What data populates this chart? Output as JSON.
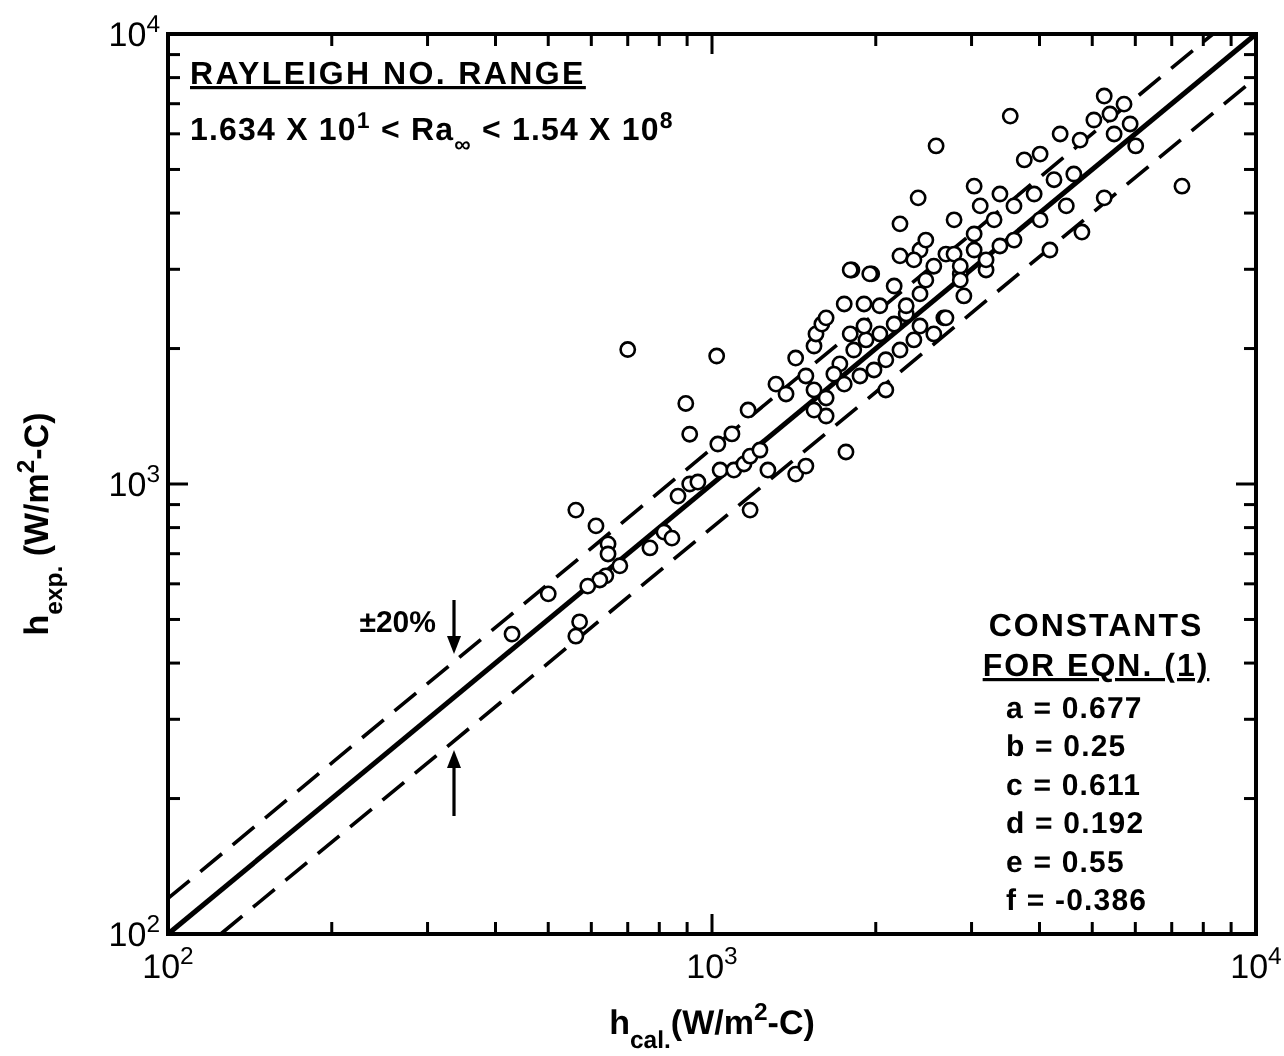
{
  "chart_data": {
    "type": "scatter",
    "xlabel": "h$_{cal.}$(W/m$^{2}$-C)",
    "ylabel": "h$_{exp.}$ (W/m$^{2}$-C)",
    "log": "xy",
    "grid": false,
    "xlim": [
      100,
      10000
    ],
    "ylim": [
      100,
      10000
    ],
    "xticks": [
      {
        "value": 100,
        "label": "10$^{2}$"
      },
      {
        "value": 200,
        "label": null
      },
      {
        "value": 300,
        "label": null
      },
      {
        "value": 400,
        "label": null
      },
      {
        "value": 500,
        "label": null
      },
      {
        "value": 600,
        "label": null
      },
      {
        "value": 700,
        "label": null
      },
      {
        "value": 800,
        "label": null
      },
      {
        "value": 900,
        "label": null
      },
      {
        "value": 1000,
        "label": "10$^{3}$"
      },
      {
        "value": 2000,
        "label": null
      },
      {
        "value": 3000,
        "label": null
      },
      {
        "value": 4000,
        "label": null
      },
      {
        "value": 5000,
        "label": null
      },
      {
        "value": 6000,
        "label": null
      },
      {
        "value": 7000,
        "label": null
      },
      {
        "value": 8000,
        "label": null
      },
      {
        "value": 9000,
        "label": null
      },
      {
        "value": 10000,
        "label": "10$^{4}$"
      }
    ],
    "yticks": [
      {
        "value": 100,
        "label": "10$^{2}$"
      },
      {
        "value": 200,
        "label": null
      },
      {
        "value": 300,
        "label": null
      },
      {
        "value": 400,
        "label": null
      },
      {
        "value": 500,
        "label": null
      },
      {
        "value": 600,
        "label": null
      },
      {
        "value": 700,
        "label": null
      },
      {
        "value": 800,
        "label": null
      },
      {
        "value": 900,
        "label": null
      },
      {
        "value": 1000,
        "label": "10$^{3}$"
      },
      {
        "value": 2000,
        "label": null
      },
      {
        "value": 3000,
        "label": null
      },
      {
        "value": 4000,
        "label": null
      },
      {
        "value": 5000,
        "label": null
      },
      {
        "value": 6000,
        "label": null
      },
      {
        "value": 7000,
        "label": null
      },
      {
        "value": 8000,
        "label": null
      },
      {
        "value": 9000,
        "label": null
      },
      {
        "value": 10000,
        "label": "10$^{4}$"
      }
    ],
    "annotations": [
      "RAYLEIGH NO. RANGE",
      "1.634 X 10$^{1}$ < Ra$_{∞}$ < 1.54 X 10$^{8}$",
      "CONSTANTS",
      "FOR EQN. (1)",
      "a = 0.677",
      "b = 0.25",
      "c = 0.611",
      "d = 0.192",
      "e = 0.55",
      "f = -0.386",
      "±20%"
    ],
    "series": [
      {
        "marker": "circle",
        "color": "#000000",
        "x": [
          700,
          1020,
          895,
          910,
          562,
          612,
          500,
          429,
          571,
          562,
          644,
          644,
          638,
          677,
          622,
          591,
          769,
          816,
          844,
          866,
          910,
          942,
          1035,
          1097,
          1145,
          1175,
          1225,
          1267,
          1175,
          1425,
          1488,
          1763,
          1025,
          1088,
          1165,
          1311,
          1368,
          1425,
          1540,
          1553,
          1592,
          1621,
          1750,
          1808,
          1966,
          1903,
          2087,
          1488,
          1540,
          1621,
          1621,
          1540,
          1718,
          1822,
          1919,
          2035,
          2162,
          2275,
          2412,
          2350,
          2216,
          2087,
          1985,
          1871,
          1750,
          1675,
          1795,
          1903,
          2557,
          2668,
          2216,
          2412,
          2692,
          3033,
          3383,
          4180,
          2860,
          3190,
          2904,
          2472,
          2162,
          2035,
          5260,
          5720,
          3534,
          2582,
          2393,
          2216,
          7310,
          6010,
          5260,
          4786,
          2692,
          1795,
          1950,
          2472,
          2786,
          3112,
          3383,
          3750,
          4010,
          4365,
          4750,
          5035,
          5390,
          5485,
          5870,
          4625,
          4253,
          3910,
          3590,
          3300,
          3033,
          2786,
          2557,
          2350,
          2860,
          3190,
          3590,
          4010,
          4480,
          3033,
          2860,
          2412,
          2275
        ],
        "values": [
          1990,
          1925,
          1510,
          1290,
          875,
          807,
          570,
          464,
          494,
          459,
          736,
          699,
          625,
          658,
          612,
          593,
          721,
          782,
          758,
          940,
          1000,
          1010,
          1074,
          1074,
          1108,
          1153,
          1190,
          1074,
          875,
          1052,
          1096,
          1178,
          1227,
          1292,
          1460,
          1667,
          1585,
          1905,
          2026,
          2155,
          2267,
          2340,
          2512,
          2990,
          2930,
          2512,
          1618,
          1738,
          1618,
          1553,
          1416,
          1460,
          1849,
          1985,
          2090,
          2155,
          2267,
          2387,
          2244,
          2090,
          1985,
          1888,
          1792,
          1738,
          1667,
          1755,
          2155,
          2244,
          2155,
          2340,
          3213,
          3311,
          3243,
          3311,
          3380,
          3311,
          2930,
          2990,
          2618,
          2838,
          2754,
          2489,
          7280,
          6985,
          6570,
          5640,
          4324,
          3785,
          4590,
          5640,
          4324,
          3630,
          2340,
          2990,
          2930,
          3484,
          3864,
          4150,
          4410,
          5250,
          5410,
          5995,
          5810,
          6440,
          6640,
          5995,
          6310,
          4885,
          4745,
          4410,
          4150,
          3864,
          3594,
          3243,
          3048,
          3148,
          3048,
          3148,
          3484,
          3864,
          4150,
          4590,
          2838,
          2645,
          2489
        ]
      },
      {
        "type": "line",
        "marker": "none",
        "color": "#000000",
        "line_style": "solid",
        "x": [
          100,
          10000
        ],
        "values": [
          100,
          10000
        ]
      },
      {
        "type": "line",
        "marker": "none",
        "color": "#000000",
        "line_style": "dashed",
        "x": [
          100,
          8333
        ],
        "values": [
          120,
          10000
        ]
      },
      {
        "type": "line",
        "marker": "none",
        "color": "#000000",
        "line_style": "dashed",
        "x": [
          125,
          10000
        ],
        "values": [
          100,
          8000
        ]
      }
    ]
  }
}
